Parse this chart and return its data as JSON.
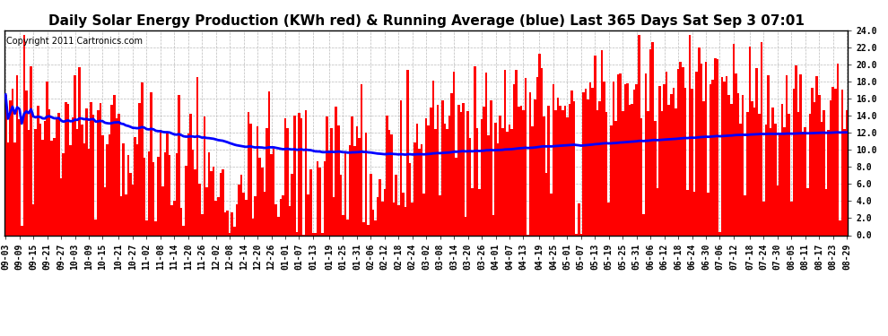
{
  "title": "Daily Solar Energy Production (KWh red) & Running Average (blue) Last 365 Days Sat Sep 3 07:01",
  "copyright_text": "Copyright 2011 Cartronics.com",
  "ylim": [
    0.0,
    24.0
  ],
  "yticks": [
    0.0,
    2.0,
    4.0,
    6.0,
    8.0,
    10.0,
    12.0,
    14.0,
    16.0,
    18.0,
    20.0,
    22.0,
    24.0
  ],
  "bar_color": "#FF0000",
  "line_color": "#0000FF",
  "background_color": "#FFFFFF",
  "grid_color": "#BBBBBB",
  "title_fontsize": 11,
  "copyright_fontsize": 7,
  "tick_label_fontsize": 7,
  "x_tick_labels": [
    "09-03",
    "09-09",
    "09-15",
    "09-21",
    "09-27",
    "10-03",
    "10-09",
    "10-15",
    "10-21",
    "10-27",
    "11-02",
    "11-08",
    "11-14",
    "11-20",
    "11-26",
    "12-02",
    "12-08",
    "12-14",
    "12-20",
    "12-26",
    "01-01",
    "01-07",
    "01-13",
    "01-19",
    "01-25",
    "01-31",
    "02-06",
    "02-12",
    "02-18",
    "02-24",
    "03-02",
    "03-08",
    "03-14",
    "03-20",
    "03-26",
    "04-01",
    "04-07",
    "04-13",
    "04-19",
    "04-25",
    "05-01",
    "05-07",
    "05-13",
    "05-19",
    "05-25",
    "05-31",
    "06-06",
    "06-12",
    "06-18",
    "06-24",
    "06-30",
    "07-06",
    "07-12",
    "07-18",
    "07-24",
    "07-30",
    "08-05",
    "08-11",
    "08-17",
    "08-23",
    "08-29"
  ]
}
